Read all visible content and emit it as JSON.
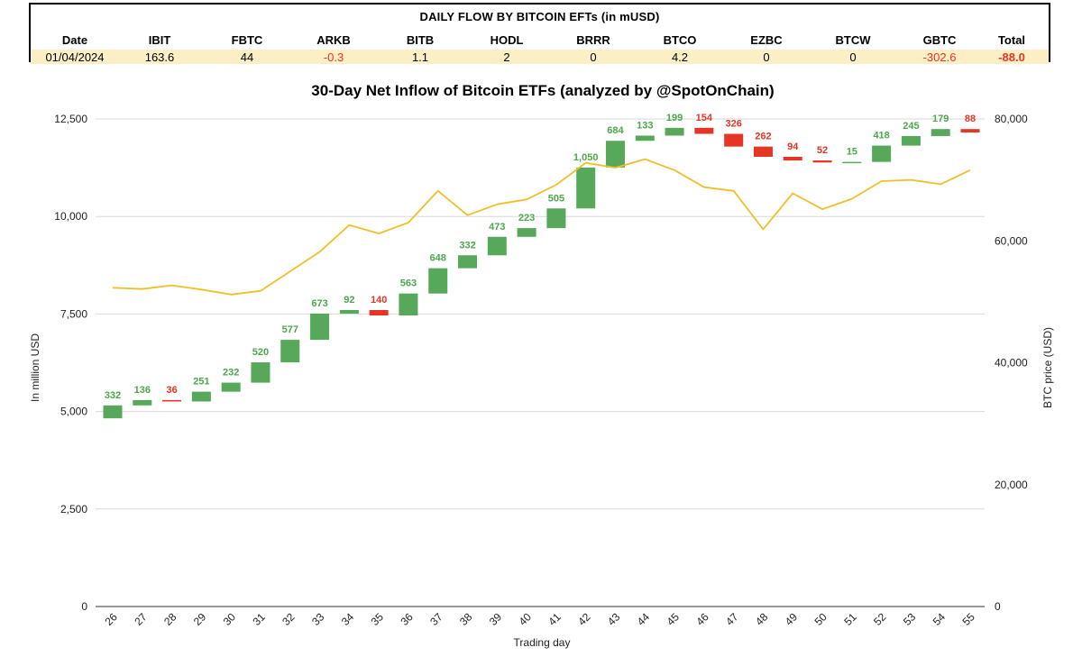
{
  "flow_table": {
    "title": "DAILY FLOW BY BITCOIN EFTs (in mUSD)",
    "headers": [
      "Date",
      "IBIT",
      "FBTC",
      "ARKB",
      "BITB",
      "HODL",
      "BRRR",
      "BTCO",
      "EZBC",
      "BTCW",
      "GBTC",
      "Total"
    ],
    "row": [
      "01/04/2024",
      "163.6",
      "44",
      "-0.3",
      "1.1",
      "2",
      "0",
      "4.2",
      "0",
      "0",
      "-302.6",
      "-88.0"
    ],
    "negative_color": "#e53524",
    "row_background": "#fcefc6"
  },
  "chart_data": {
    "type": "waterfall-with-line",
    "title": "30-Day Net Inflow of Bitcoin ETFs (analyzed by @SpotOnChain)",
    "xlabel": "Trading day",
    "ylabel_left": "In million USD",
    "ylabel_right": "BTC price (USD)",
    "categories": [
      "26",
      "27",
      "28",
      "29",
      "30",
      "31",
      "32",
      "33",
      "34",
      "35",
      "36",
      "37",
      "38",
      "39",
      "40",
      "41",
      "42",
      "43",
      "44",
      "45",
      "46",
      "47",
      "48",
      "49",
      "50",
      "51",
      "52",
      "53",
      "54",
      "55"
    ],
    "flows": [
      332,
      136,
      -36,
      251,
      232,
      520,
      577,
      673,
      92,
      -140,
      563,
      648,
      332,
      473,
      223,
      505,
      1050,
      684,
      133,
      199,
      -154,
      -326,
      -262,
      -94,
      -52,
      15,
      418,
      245,
      179,
      -88
    ],
    "flow_labels": [
      "332",
      "136",
      "36",
      "251",
      "232",
      "520",
      "577",
      "673",
      "92",
      "140",
      "563",
      "648",
      "332",
      "473",
      "223",
      "505",
      "1,050",
      "684",
      "133",
      "199",
      "154",
      "326",
      "262",
      "94",
      "52",
      "15",
      "418",
      "245",
      "179",
      "88"
    ],
    "start_value": 4825,
    "btc_price": [
      52300,
      52100,
      52700,
      52000,
      51200,
      51800,
      55000,
      58200,
      62600,
      61200,
      63000,
      68200,
      64200,
      66000,
      66800,
      69200,
      72800,
      72000,
      73400,
      71600,
      68800,
      68200,
      61900,
      67800,
      65200,
      66900,
      69800,
      70000,
      69300,
      71600
    ],
    "ylim_left": [
      0,
      12500
    ],
    "yticks_left": [
      "0",
      "2,500",
      "5,000",
      "7,500",
      "10,000",
      "12,500"
    ],
    "ylim_right": [
      0,
      80000
    ],
    "yticks_right": [
      "0",
      "20,000",
      "40,000",
      "60,000",
      "80,000"
    ],
    "grid": true,
    "colors": {
      "inflow": "#57a85a",
      "outflow": "#e53524",
      "price_line": "#f0bf2a",
      "grid": "#d9d9d9"
    }
  }
}
